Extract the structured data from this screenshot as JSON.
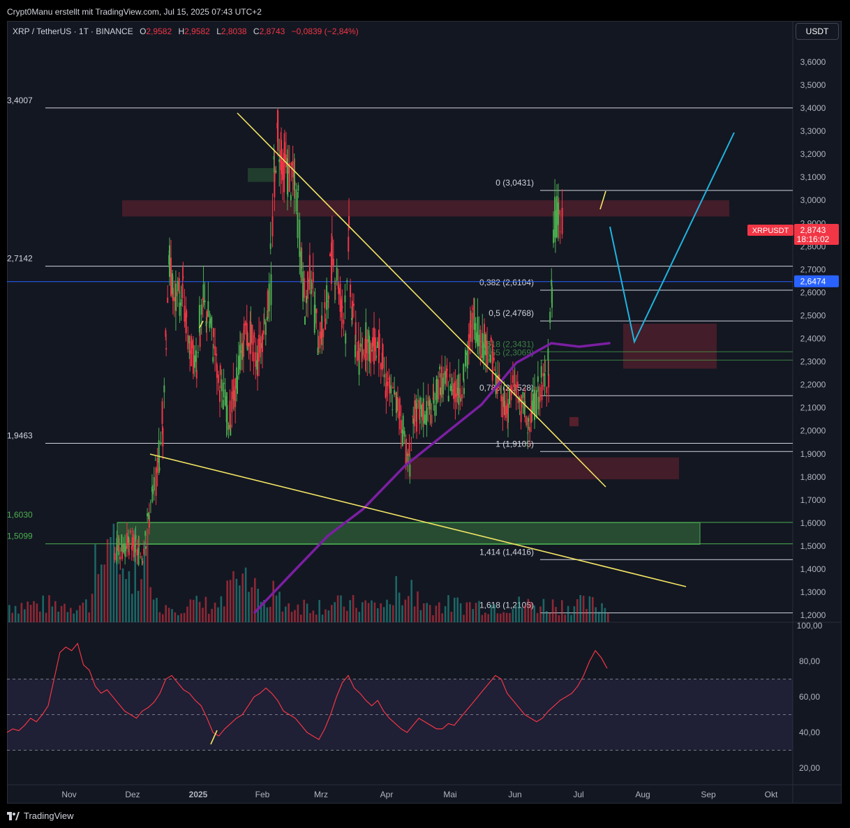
{
  "header": {
    "credit": "Crypt0Manu erstellt mit TradingView.com, Jul 15, 2025 07:43 UTC+2",
    "symbol": "XRP / TetherUS · 1T · BINANCE",
    "o_label": "O",
    "o_value": "2,9582",
    "h_label": "H",
    "h_value": "2,9582",
    "l_label": "L",
    "l_value": "2,8038",
    "c_label": "C",
    "c_value": "2,8743",
    "change": "−0,0839 (−2,84%)",
    "currency": "USDT"
  },
  "footer": {
    "brand": "TradingView"
  },
  "colors": {
    "background": "#131722",
    "up": "#4caf50",
    "down": "#f23645",
    "trendline": "#f5e663",
    "projection": "#1fb5e0",
    "ma": "#7b1fa2",
    "blue_line": "#2962ff",
    "rsi": "#f23645"
  },
  "chart_data": [
    {
      "type": "candlestick",
      "title": "XRP / TetherUS · 1T · BINANCE",
      "xlabel": "",
      "ylabel": "USDT",
      "x_ticks": [
        "Nov",
        "Dez",
        "2025",
        "Feb",
        "Mrz",
        "Apr",
        "Mai",
        "Jun",
        "Jul",
        "Aug",
        "Sep",
        "Okt"
      ],
      "y_ticks": [
        "3,6000",
        "3,5000",
        "3,4000",
        "3,3000",
        "3,2000",
        "3,1000",
        "3,0000",
        "2,9000",
        "2,8000",
        "2,7000",
        "2,6000",
        "2,5000",
        "2,4000",
        "2,3000",
        "2,2000",
        "2,1000",
        "2,0000",
        "1,9000",
        "1,8000",
        "1,7000",
        "1,6000",
        "1,5000",
        "1,4000",
        "1,3000",
        "1,2000"
      ],
      "ylim": [
        1.175,
        3.7
      ],
      "grid": false,
      "price_path": [
        [
          0,
          1.48
        ],
        [
          5,
          1.52
        ],
        [
          8,
          1.45
        ],
        [
          10,
          1.62
        ],
        [
          12,
          1.78
        ],
        [
          14,
          1.98
        ],
        [
          15,
          2.35
        ],
        [
          16,
          2.72
        ],
        [
          18,
          2.55
        ],
        [
          20,
          2.62
        ],
        [
          22,
          2.35
        ],
        [
          24,
          2.3
        ],
        [
          26,
          2.55
        ],
        [
          28,
          2.48
        ],
        [
          30,
          2.3
        ],
        [
          32,
          2.15
        ],
        [
          34,
          2.05
        ],
        [
          36,
          2.2
        ],
        [
          38,
          2.4
        ],
        [
          40,
          2.42
        ],
        [
          42,
          2.3
        ],
        [
          44,
          2.45
        ],
        [
          46,
          2.6
        ],
        [
          47,
          3.05
        ],
        [
          48,
          3.3
        ],
        [
          50,
          3.15
        ],
        [
          52,
          3.1
        ],
        [
          54,
          3.0
        ],
        [
          56,
          2.55
        ],
        [
          58,
          2.7
        ],
        [
          60,
          2.4
        ],
        [
          62,
          2.45
        ],
        [
          64,
          2.75
        ],
        [
          66,
          2.65
        ],
        [
          68,
          2.45
        ],
        [
          69,
          2.85
        ],
        [
          70,
          2.55
        ],
        [
          72,
          2.3
        ],
        [
          74,
          2.4
        ],
        [
          76,
          2.35
        ],
        [
          78,
          2.4
        ],
        [
          80,
          2.2
        ],
        [
          82,
          2.15
        ],
        [
          84,
          2.1
        ],
        [
          86,
          1.95
        ],
        [
          87,
          1.82
        ],
        [
          88,
          2.05
        ],
        [
          90,
          2.08
        ],
        [
          92,
          2.08
        ],
        [
          94,
          2.1
        ],
        [
          96,
          2.22
        ],
        [
          98,
          2.2
        ],
        [
          100,
          2.2
        ],
        [
          102,
          2.17
        ],
        [
          104,
          2.3
        ],
        [
          106,
          2.5
        ],
        [
          108,
          2.4
        ],
        [
          110,
          2.38
        ],
        [
          112,
          2.28
        ],
        [
          114,
          2.15
        ],
        [
          116,
          2.1
        ],
        [
          118,
          2.2
        ],
        [
          120,
          2.12
        ],
        [
          122,
          2.05
        ],
        [
          124,
          2.1
        ],
        [
          126,
          2.2
        ],
        [
          128,
          2.25
        ],
        [
          129,
          2.55
        ],
        [
          130,
          2.9
        ],
        [
          131,
          2.96
        ],
        [
          132,
          2.87
        ]
      ],
      "annotations": [
        {
          "text": "3,4007",
          "price": 3.4007
        },
        {
          "text": "2,7142",
          "price": 2.7142
        },
        {
          "text": "1,9463",
          "price": 1.9463
        },
        {
          "text": "1,6030",
          "price": 1.603
        },
        {
          "text": "1,5099",
          "price": 1.5099
        },
        {
          "text": "0 (3,0431)",
          "price": 3.0431
        },
        {
          "text": "0,382 (2,6104)",
          "price": 2.6104
        },
        {
          "text": "0,5 (2,4768)",
          "price": 2.4768
        },
        {
          "text": "0,618 (2,3431)",
          "price": 2.3431
        },
        {
          "text": "0,65 (2,3069)",
          "price": 2.3069
        },
        {
          "text": "0,786 (2,1528)",
          "price": 2.1528
        },
        {
          "text": "1 (1,9105)",
          "price": 1.9105
        },
        {
          "text": "1,414 (1,4416)",
          "price": 1.4416
        },
        {
          "text": "1,618 (1,2105)",
          "price": 1.2105
        }
      ],
      "last_price": {
        "label": "XRPUSDT",
        "value": "2,8743",
        "countdown": "18:16:02"
      },
      "blue_line_price": {
        "value": "2,6474",
        "price": 2.6474
      }
    },
    {
      "type": "line",
      "title": "",
      "y_ticks": [
        "100,00",
        "80,00",
        "60,00",
        "40,00",
        "20,00"
      ],
      "ylim": [
        12,
        100
      ],
      "bands": [
        70,
        50,
        30
      ],
      "values": [
        40,
        42,
        41,
        44,
        48,
        46,
        50,
        55,
        70,
        85,
        88,
        86,
        90,
        78,
        75,
        66,
        62,
        64,
        60,
        56,
        52,
        50,
        48,
        52,
        54,
        57,
        62,
        70,
        72,
        68,
        64,
        62,
        58,
        55,
        48,
        40,
        38,
        42,
        45,
        48,
        50,
        55,
        60,
        62,
        65,
        62,
        58,
        52,
        50,
        48,
        44,
        40,
        38,
        36,
        42,
        50,
        60,
        68,
        72,
        65,
        62,
        58,
        55,
        58,
        52,
        48,
        45,
        42,
        40,
        44,
        48,
        46,
        44,
        42,
        42,
        45,
        44,
        48,
        52,
        56,
        60,
        64,
        68,
        72,
        70,
        62,
        58,
        54,
        50,
        48,
        46,
        48,
        52,
        55,
        58,
        60,
        62,
        66,
        72,
        80,
        86,
        82,
        76
      ]
    }
  ]
}
